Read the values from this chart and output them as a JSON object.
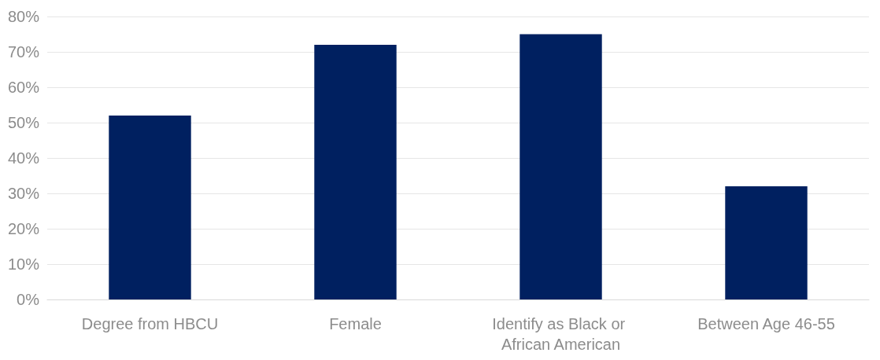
{
  "chart_data": {
    "type": "bar",
    "categories": [
      "Degree from HBCU",
      "Female",
      "Identify as Black or African American",
      "Between Age 46-55"
    ],
    "values": [
      52,
      72,
      75,
      32
    ],
    "color": "#002060",
    "ylim": [
      0,
      80
    ],
    "yticks": [
      {
        "value": 0,
        "label": "0%"
      },
      {
        "value": 10,
        "label": "10%"
      },
      {
        "value": 20,
        "label": "20%"
      },
      {
        "value": 30,
        "label": "30%"
      },
      {
        "value": 40,
        "label": "40%"
      },
      {
        "value": 50,
        "label": "50%"
      },
      {
        "value": 60,
        "label": "60%"
      },
      {
        "value": 70,
        "label": "70%"
      },
      {
        "value": 80,
        "label": "80%"
      }
    ],
    "grid": true
  }
}
